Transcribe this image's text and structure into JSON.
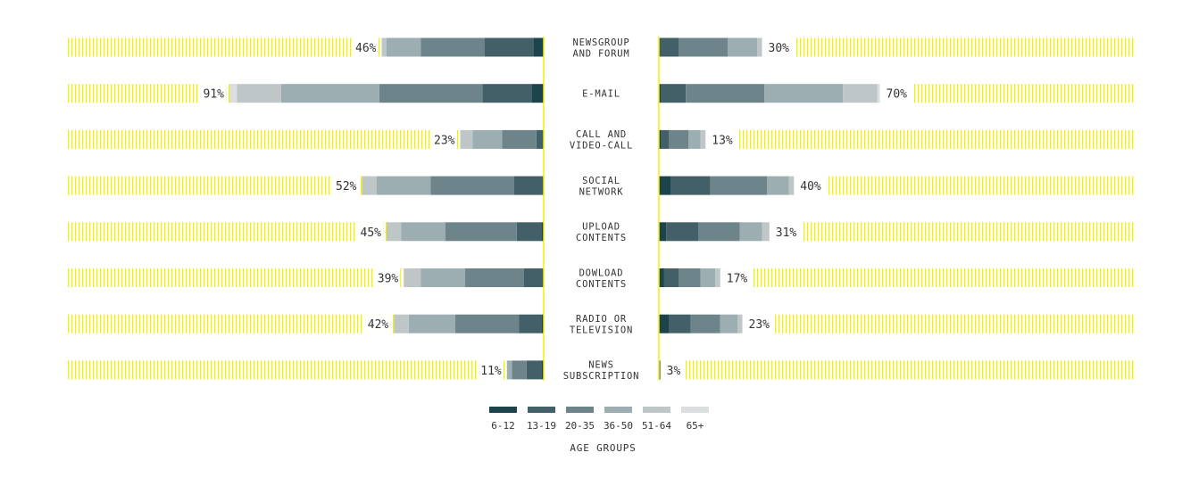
{
  "chart_data": {
    "type": "bar",
    "layout": "mirrored-stacked-horizontal",
    "legend_title": "AGE GROUPS",
    "legend_placement": "bottom-center",
    "groups": [
      "6-12",
      "13-19",
      "20-35",
      "36-50",
      "51-64",
      "65+"
    ],
    "colors": [
      "#1d444d",
      "#435f67",
      "#6d858a",
      "#9caeb1",
      "#bfc6c8",
      "#dadedf"
    ],
    "highlight_color": "#f2f000",
    "xlim": [
      0,
      100
    ],
    "categories": [
      {
        "label": [
          "NEWSGROUP",
          "AND FORUM"
        ],
        "left": {
          "total": "46%",
          "segments": [
            2,
            10,
            13,
            7,
            1,
            0
          ]
        },
        "right": {
          "total": "30%",
          "segments": [
            0,
            4,
            10,
            6,
            1,
            0
          ]
        }
      },
      {
        "label": [
          "E-MAIL"
        ],
        "left": {
          "total": "91%",
          "segments": [
            2.5,
            10,
            21,
            20,
            9,
            1.5
          ]
        },
        "right": {
          "total": "70%",
          "segments": [
            0.5,
            5,
            16,
            16,
            7,
            0.5
          ]
        }
      },
      {
        "label": [
          "CALL AND",
          "VIDEO-CALL"
        ],
        "left": {
          "total": "23%",
          "segments": [
            0,
            1.5,
            7,
            6,
            2.5,
            0
          ]
        },
        "right": {
          "total": "13%",
          "segments": [
            0.5,
            1.5,
            4,
            2.5,
            1,
            0
          ]
        }
      },
      {
        "label": [
          "SOCIAL",
          "NETWORK"
        ],
        "left": {
          "total": "52%",
          "segments": [
            0,
            6,
            17,
            11,
            3,
            0
          ]
        },
        "right": {
          "total": "40%",
          "segments": [
            2.5,
            8,
            11.5,
            4.5,
            1,
            0
          ]
        }
      },
      {
        "label": [
          "UPLOAD",
          "CONTENTS"
        ],
        "left": {
          "total": "45%",
          "segments": [
            0.5,
            5,
            14.5,
            9,
            3,
            0
          ]
        },
        "right": {
          "total": "31%",
          "segments": [
            1.5,
            6.5,
            8.5,
            4.5,
            1.5,
            0
          ]
        }
      },
      {
        "label": [
          "DOWLOAD",
          "CONTENTS"
        ],
        "left": {
          "total": "39%",
          "segments": [
            0,
            4,
            12,
            9,
            3.5,
            0
          ]
        },
        "right": {
          "total": "17%",
          "segments": [
            1,
            3,
            4.5,
            3,
            1,
            0
          ]
        }
      },
      {
        "label": [
          "RADIO OR",
          "TELEVISION"
        ],
        "left": {
          "total": "42%",
          "segments": [
            0.5,
            4.5,
            13,
            9.5,
            3,
            0
          ]
        },
        "right": {
          "total": "23%",
          "segments": [
            2,
            4.5,
            6,
            3.5,
            1,
            0
          ]
        }
      },
      {
        "label": [
          "NEWS",
          "SUBSCRIPTION"
        ],
        "left": {
          "total": "11%",
          "segments": [
            0.5,
            3,
            3,
            1,
            0,
            0
          ]
        },
        "right": {
          "total": "3%",
          "segments": [
            0,
            0.3,
            0,
            0,
            0,
            0
          ]
        }
      }
    ]
  }
}
